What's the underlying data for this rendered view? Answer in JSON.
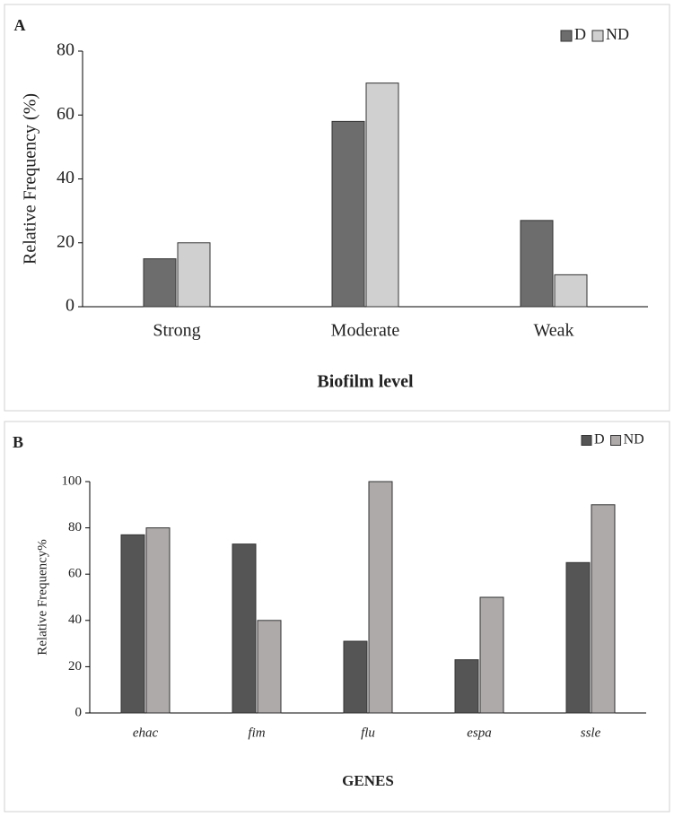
{
  "chart_data": [
    {
      "type": "bar",
      "panel_label": "A",
      "x_label": "Biofilm level",
      "y_label": "Relative Frequency (%)",
      "categories": [
        "Strong",
        "Moderate",
        "Weak"
      ],
      "series": [
        {
          "name": "D",
          "color": "#6d6d6d",
          "values": [
            15,
            58,
            27
          ]
        },
        {
          "name": "ND",
          "color": "#d0d0d0",
          "values": [
            20,
            70,
            10
          ]
        }
      ],
      "ylim": [
        0,
        80
      ],
      "yticks": [
        0,
        20,
        40,
        60,
        80
      ],
      "grid": false,
      "legend": "top-right"
    },
    {
      "type": "bar",
      "panel_label": "B",
      "x_label": "GENES",
      "y_label": "Relative Frequency%",
      "categories": [
        "ehac",
        "fim",
        "flu",
        "espa",
        "ssle"
      ],
      "series": [
        {
          "name": "D",
          "color": "#555555",
          "values": [
            77,
            73,
            31,
            23,
            65
          ]
        },
        {
          "name": "ND",
          "color": "#aeaaaa",
          "values": [
            80,
            40,
            100,
            50,
            90
          ]
        }
      ],
      "ylim": [
        0,
        100
      ],
      "yticks": [
        0,
        20,
        40,
        60,
        80,
        100
      ],
      "grid": false,
      "legend": "top-right"
    }
  ]
}
